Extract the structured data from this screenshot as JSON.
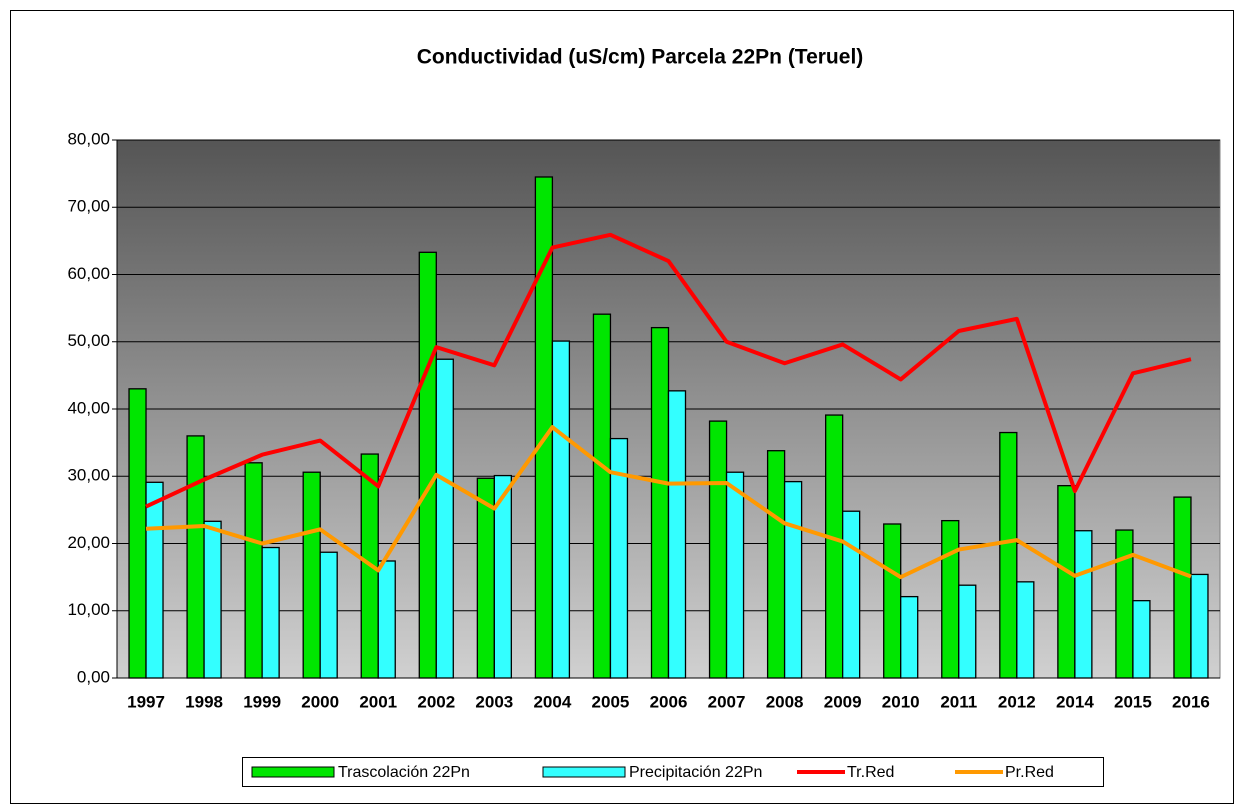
{
  "chart_data": {
    "type": "bar",
    "title": "Conductividad (uS/cm) Parcela 22Pn (Teruel)",
    "categories": [
      "1997",
      "1998",
      "1999",
      "2000",
      "2001",
      "2002",
      "2003",
      "2004",
      "2005",
      "2006",
      "2007",
      "2008",
      "2009",
      "2010",
      "2011",
      "2012",
      "2014",
      "2015",
      "2016"
    ],
    "series": [
      {
        "name": "Trascolación  22Pn",
        "type": "bar",
        "color": "#00e600",
        "values": [
          43.0,
          36.0,
          32.0,
          30.6,
          33.3,
          63.3,
          29.7,
          74.5,
          54.1,
          52.1,
          38.2,
          33.8,
          39.1,
          22.9,
          23.4,
          36.5,
          28.6,
          22.0,
          26.9
        ]
      },
      {
        "name": "Precipitación 22Pn",
        "type": "bar",
        "color": "#33ffff",
        "values": [
          29.1,
          23.3,
          19.4,
          18.7,
          17.4,
          47.4,
          30.1,
          50.1,
          35.6,
          42.7,
          30.6,
          29.2,
          24.8,
          12.1,
          13.8,
          14.3,
          21.9,
          11.5,
          15.4
        ]
      },
      {
        "name": "Tr.Red",
        "type": "line",
        "color": "#ff0000",
        "values": [
          25.5,
          29.5,
          33.2,
          35.3,
          28.5,
          49.2,
          46.5,
          64.0,
          65.9,
          62.0,
          50.0,
          46.8,
          49.6,
          44.4,
          51.6,
          53.4,
          27.8,
          45.3,
          47.4
        ]
      },
      {
        "name": "Pr.Red",
        "type": "line",
        "color": "#ff9900",
        "values": [
          22.2,
          22.6,
          20.0,
          22.1,
          16.0,
          30.2,
          25.2,
          37.3,
          30.6,
          28.9,
          29.0,
          23.0,
          20.3,
          15.0,
          19.1,
          20.5,
          15.2,
          18.3,
          15.1
        ]
      }
    ],
    "ylim": [
      0,
      80
    ],
    "yticks": [
      {
        "value": 0,
        "label": "0,00"
      },
      {
        "value": 10,
        "label": "10,00"
      },
      {
        "value": 20,
        "label": "20,00"
      },
      {
        "value": 30,
        "label": "30,00"
      },
      {
        "value": 40,
        "label": "40,00"
      },
      {
        "value": 50,
        "label": "50,00"
      },
      {
        "value": 60,
        "label": "60,00"
      },
      {
        "value": 70,
        "label": "70,00"
      },
      {
        "value": 80,
        "label": "80,00"
      }
    ],
    "grid": true,
    "legend": "bottom"
  }
}
